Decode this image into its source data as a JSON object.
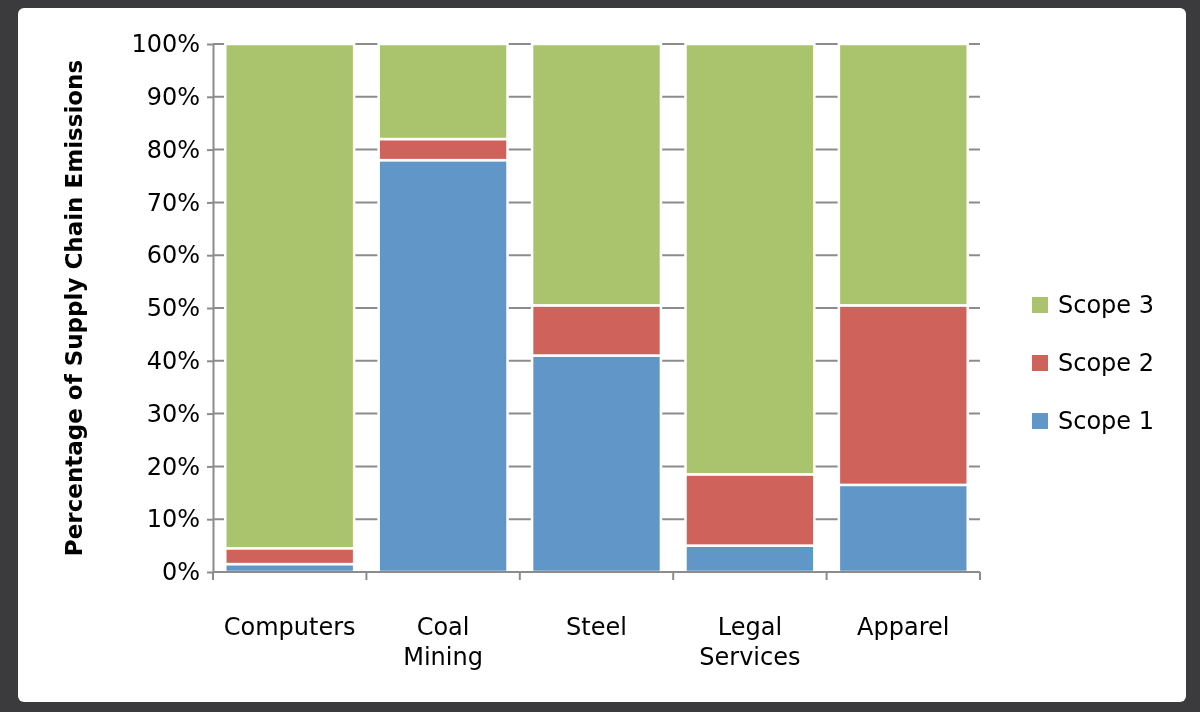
{
  "chart_data": {
    "type": "bar",
    "stacked": true,
    "ylabel": "Percentage of Supply Chain Emissions",
    "categories": [
      "Computers",
      "Coal Mining",
      "Steel",
      "Legal Services",
      "Apparel"
    ],
    "series": [
      {
        "name": "Scope 1",
        "color": "#6096c8",
        "values": [
          1.5,
          78,
          41,
          5,
          16.5
        ]
      },
      {
        "name": "Scope 2",
        "color": "#cf635c",
        "values": [
          3,
          4,
          9.5,
          13.5,
          34
        ]
      },
      {
        "name": "Scope 3",
        "color": "#a9c46c",
        "values": [
          95.5,
          18,
          49.5,
          81.5,
          49.5
        ]
      }
    ],
    "ylim": [
      0,
      100
    ],
    "yticks": [
      {
        "value": 0,
        "label": "0%"
      },
      {
        "value": 10,
        "label": "10%"
      },
      {
        "value": 20,
        "label": "20%"
      },
      {
        "value": 30,
        "label": "30%"
      },
      {
        "value": 40,
        "label": "40%"
      },
      {
        "value": 50,
        "label": "50%"
      },
      {
        "value": 60,
        "label": "60%"
      },
      {
        "value": 70,
        "label": "70%"
      },
      {
        "value": 80,
        "label": "80%"
      },
      {
        "value": 90,
        "label": "90%"
      },
      {
        "value": 100,
        "label": "100%"
      }
    ],
    "grid": "y",
    "legend": "right"
  }
}
